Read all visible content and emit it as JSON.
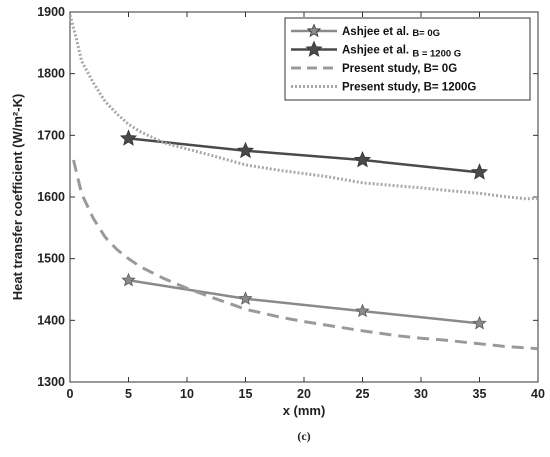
{
  "chart_data": {
    "type": "line",
    "title": "",
    "xlabel": "x (mm)",
    "ylabel": "Heat transfer coefficient (W/m²-K)",
    "xlim": [
      0,
      40
    ],
    "ylim": [
      1300,
      1900
    ],
    "xticks": [
      "0",
      "5",
      "10",
      "15",
      "20",
      "25",
      "30",
      "35",
      "40"
    ],
    "yticks": [
      "1300",
      "1400",
      "1500",
      "1600",
      "1700",
      "1800",
      "1900"
    ],
    "grid": false,
    "legend_position": "top-right",
    "series": [
      {
        "name_main": "Ashjee et al.",
        "name_suffix": "B= 0G",
        "style": "solid-circle-star",
        "color": "#8a8a8a",
        "x": [
          5,
          15,
          25,
          35
        ],
        "y": [
          1465,
          1435,
          1415,
          1395
        ]
      },
      {
        "name_main": "Ashjee et al.",
        "name_suffix": "B = 1200 G",
        "style": "solid-star",
        "color": "#4a4a4a",
        "x": [
          5,
          15,
          25,
          35
        ],
        "y": [
          1695,
          1675,
          1660,
          1640
        ]
      },
      {
        "name": "Present study, B= 0G",
        "style": "dashed",
        "color": "#9a9a9a",
        "x": [
          0.3,
          1,
          2,
          3,
          4,
          5,
          6,
          8,
          10,
          12,
          15,
          18,
          20,
          22,
          25,
          28,
          30,
          32,
          35,
          37,
          40
        ],
        "y": [
          1660,
          1605,
          1565,
          1535,
          1515,
          1500,
          1487,
          1468,
          1452,
          1438,
          1418,
          1405,
          1398,
          1392,
          1383,
          1375,
          1371,
          1368,
          1362,
          1358,
          1354
        ]
      },
      {
        "name": "Present study, B= 1200G",
        "style": "dotted",
        "color": "#a8a8a8",
        "x": [
          0,
          0.5,
          1,
          2,
          3,
          4,
          5,
          6,
          8,
          10,
          12,
          15,
          18,
          20,
          22,
          25,
          28,
          30,
          32,
          35,
          37,
          39,
          40
        ],
        "y": [
          1895,
          1860,
          1820,
          1785,
          1755,
          1735,
          1718,
          1706,
          1688,
          1678,
          1668,
          1652,
          1643,
          1638,
          1633,
          1623,
          1618,
          1615,
          1611,
          1606,
          1601,
          1597,
          1598
        ]
      }
    ],
    "caption": "(c)"
  }
}
